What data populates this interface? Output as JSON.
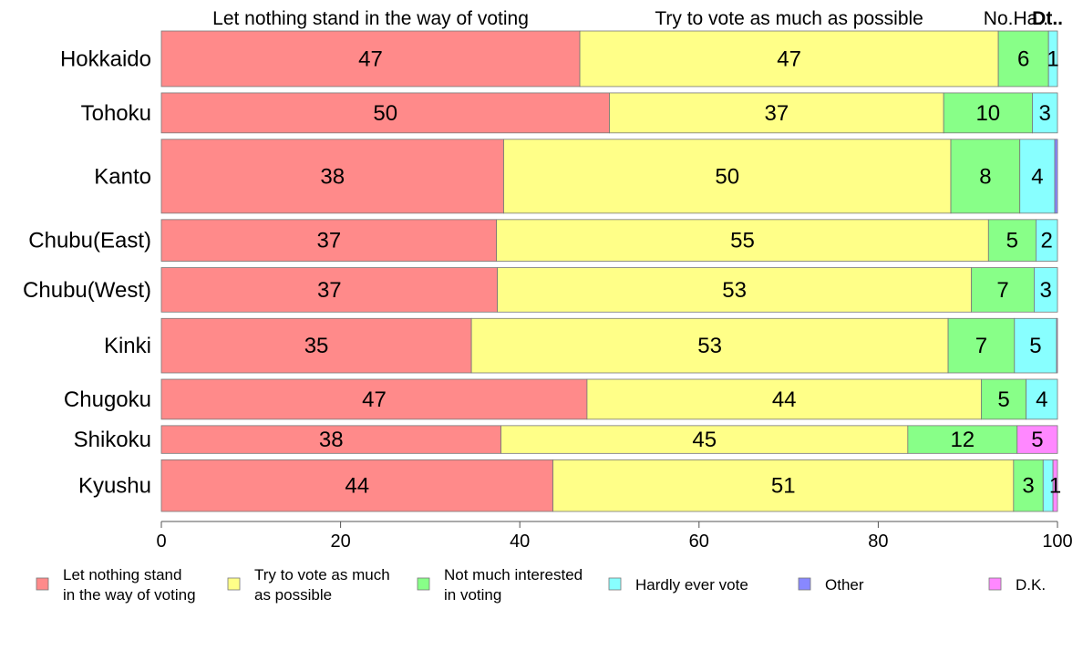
{
  "chart_data": {
    "type": "bar",
    "orientation": "horizontal",
    "stacked": true,
    "categories": [
      "Hokkaido",
      "Tohoku",
      "Kanto",
      "Chubu(East)",
      "Chubu(West)",
      "Kinki",
      "Chugoku",
      "Shikoku",
      "Kyushu"
    ],
    "row_weights": [
      1.0,
      0.72,
      1.33,
      0.75,
      0.8,
      0.98,
      0.72,
      0.5,
      0.93
    ],
    "series": [
      {
        "name": "Let nothing stand in the way of voting",
        "legend_lines": [
          "Let nothing stand",
          "in the way of voting"
        ],
        "color": "#ff8a8a",
        "values": [
          46.7,
          50.0,
          38.2,
          37.4,
          37.5,
          34.6,
          47.5,
          37.9,
          43.7
        ],
        "labels": [
          "47",
          "50",
          "38",
          "37",
          "37",
          "35",
          "47",
          "38",
          "44"
        ]
      },
      {
        "name": "Try to vote as much as possible",
        "legend_lines": [
          "Try to vote as much",
          "as possible"
        ],
        "color": "#ffff88",
        "values": [
          46.7,
          37.3,
          49.9,
          54.9,
          52.9,
          53.2,
          44.0,
          45.4,
          51.4
        ],
        "labels": [
          "47",
          "37",
          "50",
          "55",
          "53",
          "53",
          "44",
          "45",
          "51"
        ]
      },
      {
        "name": "Not much interested in voting",
        "legend_lines": [
          "Not much interested",
          "in voting"
        ],
        "color": "#88ff88",
        "values": [
          5.6,
          9.9,
          7.7,
          5.3,
          7.0,
          7.4,
          5.0,
          12.2,
          3.3
        ],
        "labels": [
          "6",
          "10",
          "8",
          "5",
          "7",
          "7",
          "5",
          "12",
          "3"
        ]
      },
      {
        "name": "Hardly ever vote",
        "legend_lines": [
          "Hardly ever vote"
        ],
        "color": "#88ffff",
        "values": [
          1.0,
          2.8,
          3.9,
          2.4,
          2.6,
          4.7,
          3.5,
          0.0,
          1.1
        ],
        "labels": [
          "1",
          "3",
          "4",
          "2",
          "3",
          "5",
          "4",
          "",
          ""
        ]
      },
      {
        "name": "Other",
        "legend_lines": [
          "Other"
        ],
        "color": "#8888ff",
        "values": [
          0.0,
          0.0,
          0.3,
          0.0,
          0.0,
          0.0,
          0.0,
          0.0,
          0.0
        ],
        "labels": [
          "",
          "",
          "",
          "",
          "",
          "",
          "",
          "",
          ""
        ]
      },
      {
        "name": "D.K.",
        "legend_lines": [
          "D.K."
        ],
        "color": "#ff88ff",
        "values": [
          0.0,
          0.0,
          0.0,
          0.0,
          0.0,
          0.1,
          0.0,
          4.5,
          0.5
        ],
        "labels": [
          "",
          "",
          "",
          "",
          "",
          "",
          "",
          "5",
          "1"
        ]
      }
    ],
    "top_headers": [
      "Let nothing stand in the way of voting",
      "Try to vote as much as possible",
      "No.Ha..",
      "Dt.."
    ],
    "xlim": [
      0,
      100
    ],
    "xticks": [
      0,
      20,
      40,
      60,
      80,
      100
    ],
    "grid": false,
    "legend_position": "bottom"
  }
}
